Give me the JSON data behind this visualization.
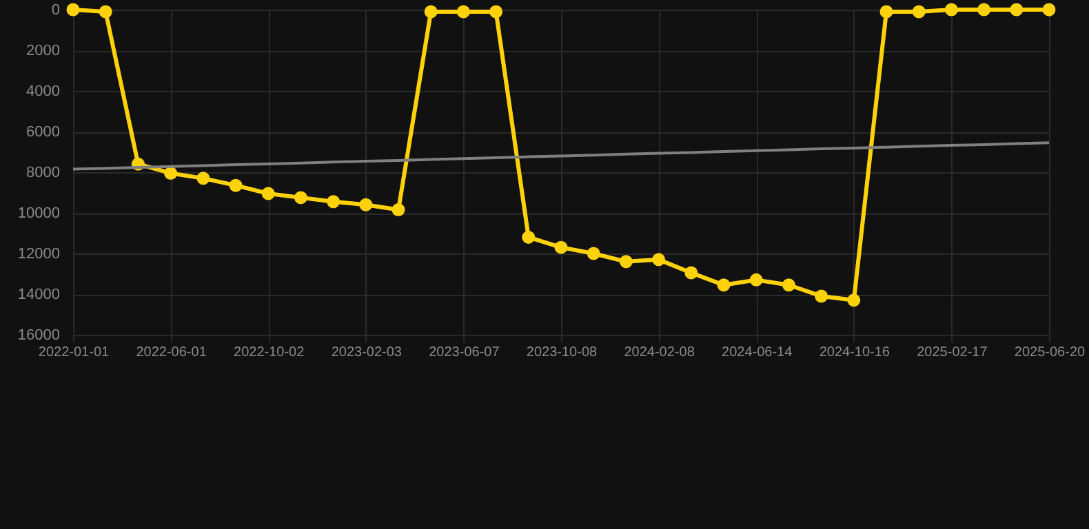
{
  "chart_data": {
    "type": "line",
    "categories": [
      "2022-01-01",
      null,
      null,
      "2022-06-01",
      null,
      null,
      "2022-10-02",
      null,
      null,
      "2023-02-03",
      null,
      null,
      "2023-06-07",
      null,
      null,
      "2023-10-08",
      null,
      null,
      "2024-02-08",
      null,
      null,
      "2024-06-14",
      null,
      null,
      "2024-10-16",
      null,
      null,
      "2025-02-17",
      null,
      null,
      "2025-06-20"
    ],
    "series": [
      {
        "color": "#fdd20a",
        "marker": "circle",
        "values": [
          0,
          100,
          7600,
          8050,
          8300,
          8650,
          9050,
          9250,
          9450,
          9600,
          9850,
          100,
          100,
          100,
          11200,
          11700,
          12000,
          12400,
          12300,
          12950,
          13550,
          13300,
          13550,
          14100,
          14300,
          100,
          100,
          0,
          0,
          0,
          0
        ]
      },
      {
        "type": "line",
        "color": "#808080",
        "marker": "none",
        "values": [
          7850,
          7810,
          7760,
          7720,
          7680,
          7630,
          7590,
          7550,
          7500,
          7460,
          7420,
          7370,
          7330,
          7290,
          7240,
          7200,
          7160,
          7110,
          7070,
          7030,
          6980,
          6940,
          6900,
          6850,
          6810,
          6770,
          6720,
          6680,
          6640,
          6590,
          6550
        ]
      }
    ],
    "ylim": [
      16000,
      0
    ],
    "yticks": [
      0,
      2000,
      4000,
      6000,
      8000,
      10000,
      12000,
      14000,
      16000
    ],
    "grid": true
  }
}
